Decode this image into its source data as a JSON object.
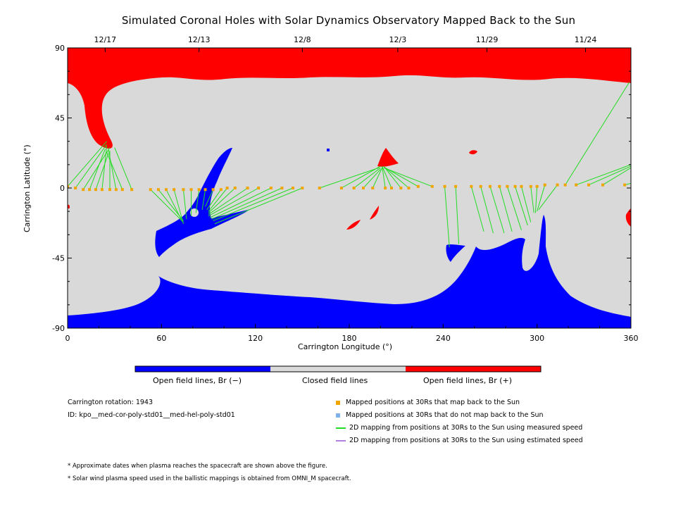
{
  "title": "Simulated Coronal Holes with Solar Dynamics Observatory Mapped Back to the Sun",
  "colors": {
    "closed": "#d9d9d9",
    "open_negative": "#0000ff",
    "open_positive": "#ff0000",
    "mapped": "#f0a500",
    "not_mapped": "#7fb2e8",
    "measured_line": "#22dd22",
    "estimated_line": "#b07fe0"
  },
  "chart_data": {
    "type": "scatter",
    "title": "Simulated Coronal Holes with Solar Dynamics Observatory Mapped Back to the Sun",
    "xlabel": "Carrington Longitude (°)",
    "ylabel": "Carrington Latitude (°)",
    "xlim": [
      0,
      360
    ],
    "ylim": [
      -90,
      90
    ],
    "x_ticks": [
      "0",
      "60",
      "120",
      "180",
      "240",
      "300",
      "360"
    ],
    "y_ticks": [
      "90",
      "45",
      "0",
      "-45",
      "-90"
    ],
    "top_axis_dates": [
      {
        "label": "12/17",
        "lon": 24
      },
      {
        "label": "12/13",
        "lon": 84
      },
      {
        "label": "12/8",
        "lon": 150
      },
      {
        "label": "12/3",
        "lon": 211
      },
      {
        "label": "11/29",
        "lon": 268
      },
      {
        "label": "11/24",
        "lon": 331
      }
    ],
    "mappings": [
      {
        "lon": 0,
        "lat": 1,
        "foot": [
          25,
          30
        ]
      },
      {
        "lon": 5,
        "lat": 0,
        "foot": [
          25,
          28
        ]
      },
      {
        "lon": 10,
        "lat": -1,
        "foot": [
          27,
          26
        ]
      },
      {
        "lon": 14,
        "lat": -1,
        "foot": [
          24,
          25
        ]
      },
      {
        "lon": 18,
        "lat": -1,
        "foot": [
          26,
          22
        ]
      },
      {
        "lon": 22,
        "lat": -1,
        "foot": [
          25,
          27
        ]
      },
      {
        "lon": 27,
        "lat": -1,
        "foot": [
          27,
          24
        ]
      },
      {
        "lon": 31,
        "lat": -1,
        "foot": [
          26,
          25
        ]
      },
      {
        "lon": 35,
        "lat": -1,
        "foot": [
          25,
          23
        ]
      },
      {
        "lon": 41,
        "lat": -1,
        "foot": [
          30,
          26
        ]
      },
      {
        "lon": 53,
        "lat": -1,
        "foot": [
          74,
          -22
        ]
      },
      {
        "lon": 58,
        "lat": -1,
        "foot": [
          74,
          -21
        ]
      },
      {
        "lon": 63,
        "lat": -1,
        "foot": [
          73,
          -21
        ]
      },
      {
        "lon": 68,
        "lat": -1,
        "foot": [
          74,
          -23
        ]
      },
      {
        "lon": 74,
        "lat": -1,
        "foot": [
          76,
          -20
        ]
      },
      {
        "lon": 79,
        "lat": -1,
        "foot": [
          79,
          -18
        ]
      },
      {
        "lon": 84,
        "lat": -1,
        "foot": [
          82,
          -16
        ]
      },
      {
        "lon": 88,
        "lat": -1,
        "foot": [
          86,
          -14
        ]
      },
      {
        "lon": 93,
        "lat": -1,
        "foot": [
          88,
          -12
        ]
      },
      {
        "lon": 98,
        "lat": -1,
        "foot": [
          89,
          -14
        ]
      },
      {
        "lon": 102,
        "lat": 0,
        "foot": [
          90,
          -15
        ]
      },
      {
        "lon": 107,
        "lat": 0,
        "foot": [
          90,
          -16
        ]
      },
      {
        "lon": 115,
        "lat": 0,
        "foot": [
          90,
          -17
        ]
      },
      {
        "lon": 122,
        "lat": 0,
        "foot": [
          90,
          -18
        ]
      },
      {
        "lon": 130,
        "lat": 0,
        "foot": [
          91,
          -19
        ]
      },
      {
        "lon": 137,
        "lat": 0,
        "foot": [
          92,
          -20
        ]
      },
      {
        "lon": 144,
        "lat": 0,
        "foot": [
          93,
          -21
        ]
      },
      {
        "lon": 150,
        "lat": 0,
        "foot": [
          94,
          -23
        ]
      },
      {
        "lon": 161,
        "lat": 0,
        "foot": [
          199,
          13
        ]
      },
      {
        "lon": 175,
        "lat": 0,
        "foot": [
          200,
          14
        ]
      },
      {
        "lon": 183,
        "lat": 0,
        "foot": [
          200,
          13
        ]
      },
      {
        "lon": 189,
        "lat": 0,
        "foot": [
          200,
          12
        ]
      },
      {
        "lon": 195,
        "lat": 0,
        "foot": [
          201,
          13
        ]
      },
      {
        "lon": 203,
        "lat": 0,
        "foot": [
          201,
          14
        ]
      },
      {
        "lon": 207,
        "lat": 0,
        "foot": [
          201,
          14
        ]
      },
      {
        "lon": 213,
        "lat": 0,
        "foot": [
          202,
          14
        ]
      },
      {
        "lon": 218,
        "lat": 0,
        "foot": [
          203,
          13
        ]
      },
      {
        "lon": 224,
        "lat": 1,
        "foot": [
          203,
          13
        ]
      },
      {
        "lon": 233,
        "lat": 1,
        "foot": [
          202,
          13
        ]
      },
      {
        "lon": 241,
        "lat": 1,
        "foot": [
          244,
          -38
        ]
      },
      {
        "lon": 248,
        "lat": 1,
        "foot": [
          250,
          -36
        ]
      },
      {
        "lon": 258,
        "lat": 1,
        "foot": [
          266,
          -28
        ]
      },
      {
        "lon": 264,
        "lat": 1,
        "foot": [
          272,
          -29
        ]
      },
      {
        "lon": 270,
        "lat": 1,
        "foot": [
          279,
          -29
        ]
      },
      {
        "lon": 276,
        "lat": 1,
        "foot": [
          284,
          -28
        ]
      },
      {
        "lon": 281,
        "lat": 1,
        "foot": [
          290,
          -27
        ]
      },
      {
        "lon": 286,
        "lat": 1,
        "foot": [
          294,
          -24
        ]
      },
      {
        "lon": 290,
        "lat": 1,
        "foot": [
          296,
          -22
        ]
      },
      {
        "lon": 296,
        "lat": 1,
        "foot": [
          298,
          -16
        ]
      },
      {
        "lon": 300,
        "lat": 1,
        "foot": [
          299,
          -16
        ]
      },
      {
        "lon": 305,
        "lat": 2,
        "foot": [
          300,
          -15
        ]
      },
      {
        "lon": 313,
        "lat": 2,
        "foot": [
          301,
          -14
        ]
      },
      {
        "lon": 318,
        "lat": 2,
        "foot": [
          359,
          68
        ]
      },
      {
        "lon": 325,
        "lat": 2,
        "foot": [
          360,
          15
        ]
      },
      {
        "lon": 333,
        "lat": 2,
        "foot": [
          360,
          14
        ]
      },
      {
        "lon": 342,
        "lat": 2,
        "foot": [
          360,
          13
        ]
      },
      {
        "lon": 356,
        "lat": 2,
        "foot": [
          360,
          3
        ]
      }
    ],
    "legend": [
      {
        "marker": "square",
        "color": "#f0a500",
        "label": "Mapped positions at 30Rs that map back to the Sun"
      },
      {
        "marker": "square",
        "color": "#7fb2e8",
        "label": "Mapped positions at 30Rs that do not map back to the Sun"
      },
      {
        "marker": "line",
        "color": "#22dd22",
        "label": "2D mapping from positions at 30Rs to the Sun using measured speed"
      },
      {
        "marker": "line",
        "color": "#b07fe0",
        "label": "2D mapping from positions at 30Rs to the Sun using estimated speed"
      }
    ]
  },
  "colorbar": {
    "labels": [
      "Open field lines, Br (−)",
      "Closed field lines",
      "Open field lines, Br (+)"
    ]
  },
  "info": {
    "rotation": "Carrington rotation: 1943",
    "id": "ID: kpo__med-cor-poly-std01__med-hel-poly-std01"
  },
  "notes": [
    "* Approximate dates when plasma reaches the spacecraft are shown above the figure.",
    "* Solar wind plasma speed used in the ballistic mappings is obtained from OMNI_M spacecraft."
  ]
}
